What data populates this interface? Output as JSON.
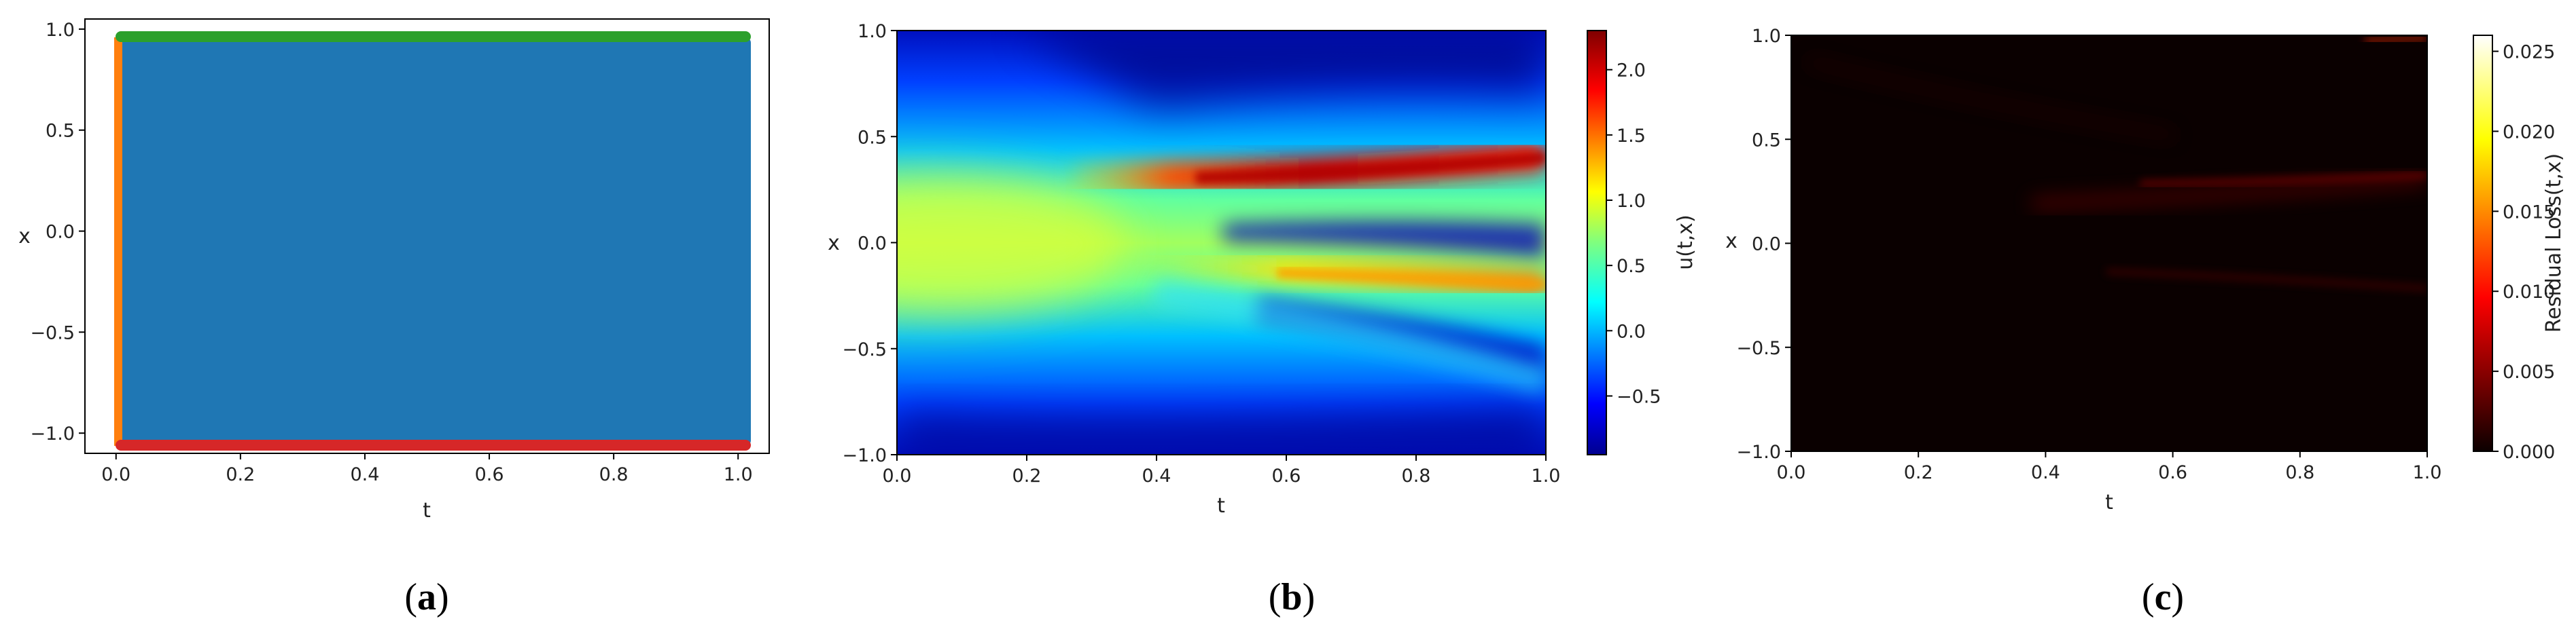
{
  "chart_data": [
    {
      "panel": "a",
      "type": "scatter",
      "xlabel": "t",
      "ylabel": "x",
      "xlim": [
        -0.05,
        1.05
      ],
      "ylim": [
        -1.1,
        1.05
      ],
      "xticks": [
        "0.0",
        "0.2",
        "0.4",
        "0.6",
        "0.8",
        "1.0"
      ],
      "yticks": [
        "1.0",
        "0.5",
        "0.0",
        "-0.5",
        "-1.0"
      ],
      "series": [
        {
          "role": "interior collocation points",
          "color": "#1f77b4",
          "t_range": [
            0,
            1
          ],
          "x_range": [
            -1,
            1
          ]
        },
        {
          "role": "initial condition points",
          "color": "#ff7f0e",
          "t": 0,
          "x_range": [
            -1,
            1
          ]
        },
        {
          "role": "upper boundary points",
          "color": "#2ca02c",
          "x": 1,
          "t_range": [
            0,
            1
          ]
        },
        {
          "role": "lower boundary points",
          "color": "#d62728",
          "x": -1,
          "t_range": [
            0,
            1
          ]
        }
      ]
    },
    {
      "panel": "b",
      "type": "heatmap",
      "xlabel": "t",
      "ylabel": "x",
      "colorbar_label": "u(t,x)",
      "colormap": "jet",
      "xlim": [
        0,
        1
      ],
      "ylim": [
        -1,
        1
      ],
      "clim": [
        -0.95,
        2.3
      ],
      "xticks": [
        "0.0",
        "0.2",
        "0.4",
        "0.6",
        "0.8",
        "1.0"
      ],
      "yticks": [
        "1.0",
        "0.5",
        "0.0",
        "-0.5",
        "-1.0"
      ],
      "colorbar_ticks": [
        "2.0",
        "1.5",
        "1.0",
        "0.5",
        "0.0",
        "-0.5"
      ],
      "features": [
        {
          "desc": "high-value branch",
          "t": [
            0.25,
            1.0
          ],
          "x": [
            0.3,
            0.42
          ],
          "u_peak": 2.3
        },
        {
          "desc": "secondary branch",
          "t": [
            0.4,
            1.0
          ],
          "x": [
            0.0,
            -0.13
          ],
          "u_peak": 1.5
        },
        {
          "desc": "initial plateau",
          "t": [
            0.0,
            0.3
          ],
          "x": [
            -0.3,
            0.3
          ],
          "u": 1.0
        }
      ]
    },
    {
      "panel": "c",
      "type": "heatmap",
      "xlabel": "t",
      "ylabel": "x",
      "colorbar_label": "Residual Loss(t,x)",
      "colormap": "hot",
      "xlim": [
        0,
        1
      ],
      "ylim": [
        -1,
        1
      ],
      "clim": [
        0,
        0.026
      ],
      "xticks": [
        "0.0",
        "0.2",
        "0.4",
        "0.6",
        "0.8",
        "1.0"
      ],
      "yticks": [
        "1.0",
        "0.5",
        "0.0",
        "-0.5",
        "-1.0"
      ],
      "colorbar_ticks": [
        "0.025",
        "0.020",
        "0.015",
        "0.010",
        "0.005",
        "0.000"
      ]
    }
  ],
  "panel_labels": [
    {
      "open": "(",
      "letter": "a",
      "close": ")"
    },
    {
      "open": "(",
      "letter": "b",
      "close": ")"
    },
    {
      "open": "(",
      "letter": "c",
      "close": ")"
    }
  ]
}
